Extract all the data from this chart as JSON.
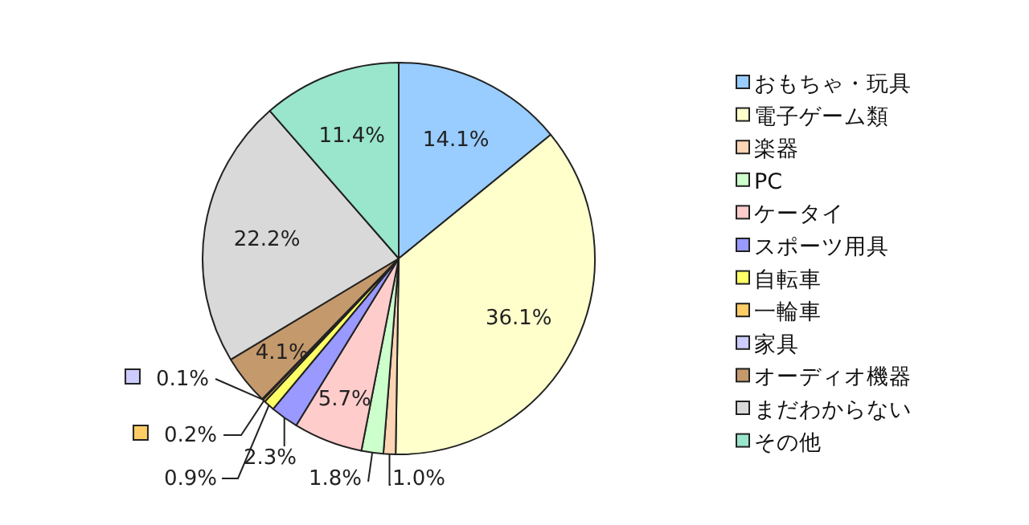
{
  "chart_data": {
    "type": "pie",
    "categories": [
      "おもちゃ・玩具",
      "電子ゲーム類",
      "楽器",
      "PC",
      "ケータイ",
      "スポーツ用具",
      "自転車",
      "一輪車",
      "家具",
      "オーディオ機器",
      "まだわからない",
      "その他"
    ],
    "values": [
      14.1,
      36.1,
      1.0,
      1.8,
      5.7,
      2.3,
      0.9,
      0.2,
      0.1,
      4.1,
      22.2,
      11.4
    ],
    "value_labels": [
      "14.1%",
      "36.1%",
      "1.0%",
      "1.8%",
      "5.7%",
      "2.3%",
      "0.9%",
      "0.2%",
      "0.1%",
      "4.1%",
      "22.2%",
      "11.4%"
    ],
    "colors": [
      "#99ccff",
      "#ffffcc",
      "#fcd5b4",
      "#ccffcc",
      "#ffcccc",
      "#9999ff",
      "#ffff66",
      "#ffcc66",
      "#ccccff",
      "#c4996c",
      "#d9d9d9",
      "#99e6cc"
    ],
    "legend": "right"
  }
}
